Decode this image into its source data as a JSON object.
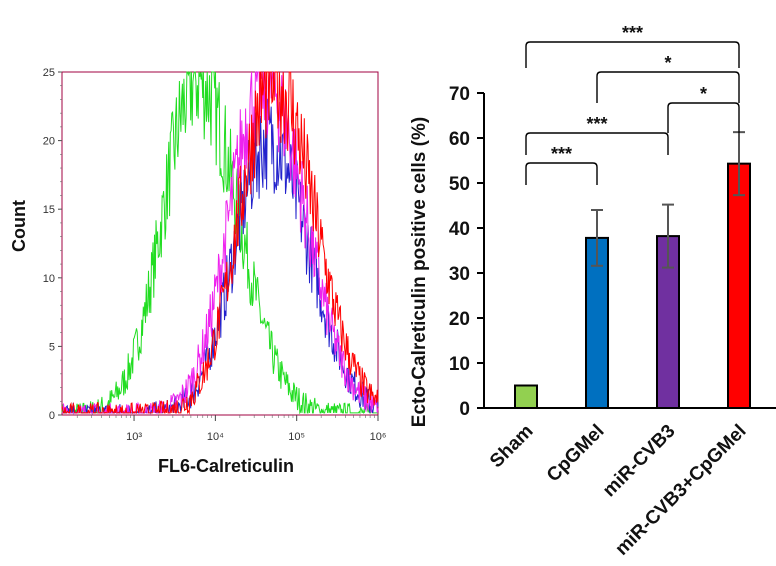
{
  "chart_data": [
    {
      "type": "line",
      "panel": "histogram",
      "xlabel": "FL6-Calreticulin",
      "ylabel": "Count",
      "x_scale": "log",
      "xlim": [
        130,
        1000000
      ],
      "ylim": [
        0,
        25
      ],
      "x_ticks": [
        {
          "value": 1000,
          "label": "10³"
        },
        {
          "value": 10000,
          "label": "10⁴"
        },
        {
          "value": 100000,
          "label": "10⁵"
        },
        {
          "value": 1000000,
          "label": "10⁶"
        }
      ],
      "y_ticks": [
        0,
        5,
        10,
        15,
        20,
        25
      ],
      "series": [
        {
          "color": "#22dd22",
          "peak_x": 6000,
          "peak_count": 24.5
        },
        {
          "color": "#2222cc",
          "peak_x": 45000,
          "peak_count": 20
        },
        {
          "color": "#ee22ee",
          "peak_x": 40000,
          "peak_count": 24.5
        },
        {
          "color": "#ff0000",
          "peak_x": 52000,
          "peak_count": 24.5
        }
      ]
    },
    {
      "type": "bar",
      "panel": "summary",
      "categories": [
        "Sham",
        "CpGMel",
        "miR-CVB3",
        "miR-CVB3+CpGMel"
      ],
      "values": [
        5,
        37.8,
        38.2,
        54.3
      ],
      "errors": [
        0,
        6.2,
        7,
        7
      ],
      "colors": [
        "#92d050",
        "#0070c0",
        "#7030a0",
        "#ff0000"
      ],
      "ylabel": "Ecto-Calreticulin  positive cells (%)",
      "ylim": [
        0,
        70
      ],
      "y_ticks": [
        0,
        10,
        20,
        30,
        40,
        50,
        60,
        70
      ],
      "significance": [
        {
          "from": 0,
          "to": 3,
          "label": "***"
        },
        {
          "from": 1,
          "to": 3,
          "label": "*"
        },
        {
          "from": 0,
          "to": 2,
          "label": "***"
        },
        {
          "from": 2,
          "to": 3,
          "label": "*"
        },
        {
          "from": 0,
          "to": 1,
          "label": "***"
        }
      ]
    }
  ]
}
